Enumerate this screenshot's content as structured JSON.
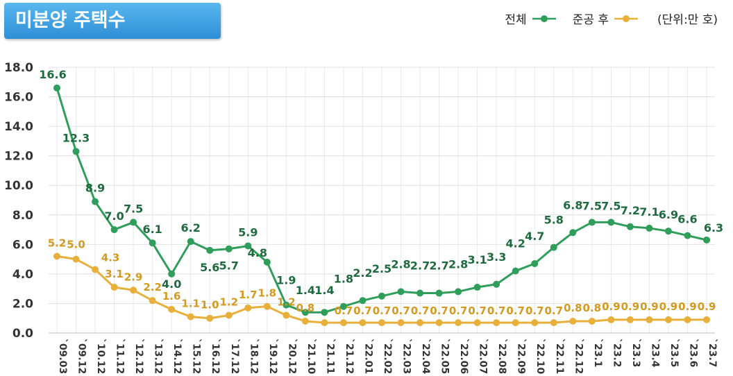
{
  "header": {
    "title": "미분양 주택수",
    "legend_total": "전체",
    "legend_completed": "준공 후",
    "unit": "(단위:만 호)"
  },
  "colors": {
    "total": "#2e9e5a",
    "completed": "#e8b03a",
    "total_label": "#1f6b3f",
    "completed_label": "#d49a20"
  },
  "chart_data": {
    "type": "line",
    "title": "미분양 주택수",
    "xlabel": "",
    "ylabel": "",
    "unit": "(단위:만 호)",
    "ylim": [
      0,
      18
    ],
    "yticks": [
      "0.0",
      "2.0",
      "4.0",
      "6.0",
      "8.0",
      "10.0",
      "12.0",
      "14.0",
      "16.0",
      "18.0"
    ],
    "categories": [
      "`09.03",
      "`09.12",
      "`10.12",
      "`11.12",
      "`12.12",
      "`13.12",
      "`14.12",
      "`15.12",
      "`16.12",
      "`17.12",
      "`18.12",
      "`19.12",
      "`20.12",
      "`21.10",
      "`21.11",
      "`21.12",
      "`22.01",
      "`22.02",
      "`22.03",
      "`22.04",
      "`22.05",
      "`22.06",
      "`22.07",
      "`22.08",
      "`22.09",
      "`22.10",
      "`22.11",
      "`22.12",
      "`23.1",
      "`23.2",
      "`23.3",
      "`23.4",
      "`23.5",
      "`23.6",
      "`23.7"
    ],
    "series": [
      {
        "name": "전체",
        "values": [
          16.6,
          12.3,
          8.9,
          7.0,
          7.5,
          6.1,
          4.0,
          6.2,
          5.6,
          5.7,
          5.9,
          4.8,
          1.9,
          1.4,
          1.4,
          1.8,
          2.2,
          2.5,
          2.8,
          2.7,
          2.7,
          2.8,
          3.1,
          3.3,
          4.2,
          4.7,
          5.8,
          6.8,
          7.5,
          7.5,
          7.2,
          7.1,
          6.9,
          6.6,
          6.3
        ],
        "labels": [
          "16.6",
          "12.3",
          "8.9",
          "7.0",
          "7.5",
          "6.1",
          "4.0",
          "6.2",
          "5.6",
          "5.7",
          "5.9",
          "4.8",
          "1.9",
          "1.4",
          "1.4",
          "1.8",
          "2.2",
          "2.5",
          "2.8",
          "2.7",
          "2.7",
          "2.8",
          "3.1",
          "3.3",
          "4.2",
          "4.7",
          "5.8",
          "6.8",
          "7.5",
          "7.5",
          "7.2",
          "7.1",
          "6.9",
          "6.6",
          "6.3"
        ]
      },
      {
        "name": "준공 후",
        "values": [
          5.2,
          5.0,
          4.3,
          3.1,
          2.9,
          2.2,
          1.6,
          1.1,
          1.0,
          1.2,
          1.7,
          1.8,
          1.2,
          0.8,
          0.7,
          0.7,
          0.7,
          0.7,
          0.7,
          0.7,
          0.7,
          0.7,
          0.7,
          0.7,
          0.7,
          0.7,
          0.7,
          0.8,
          0.8,
          0.9,
          0.9,
          0.9,
          0.9,
          0.9,
          0.9
        ],
        "labels": [
          "5.2",
          "5.0",
          "4.3",
          "3.1",
          "2.9",
          "2.2",
          "1.6",
          "1.1",
          "1.0",
          "1.2",
          "1.7",
          "1.8",
          "1.2",
          "0.8",
          "",
          "0.7",
          "0.7",
          "0.7",
          "0.7",
          "0.7",
          "0.7",
          "0.7",
          "0.7",
          "0.7",
          "0.7",
          "0.7",
          "0.7",
          "0.8",
          "0.8",
          "0.9",
          "0.9",
          "0.9",
          "0.9",
          "0.9",
          "0.9"
        ]
      }
    ]
  }
}
